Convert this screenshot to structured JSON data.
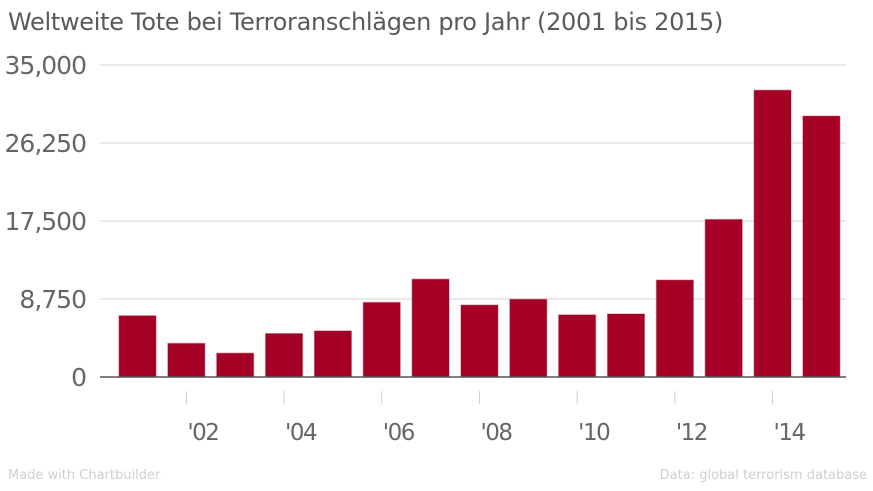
{
  "chart_data": {
    "type": "bar",
    "title": "Weltweite Tote bei Terroranschlägen pro Jahr (2001 bis 2015)",
    "xlabel": "",
    "ylabel": "",
    "ylim": [
      0,
      35000
    ],
    "yticks": [
      0,
      8750,
      17500,
      26250,
      35000
    ],
    "ytick_labels": [
      "0",
      "8,750",
      "17,500",
      "26,250",
      "35,000"
    ],
    "categories": [
      "2001",
      "2002",
      "2003",
      "2004",
      "2005",
      "2006",
      "2007",
      "2008",
      "2009",
      "2010",
      "2011",
      "2012",
      "2013",
      "2014",
      "2015"
    ],
    "values": [
      6900,
      3800,
      2700,
      4900,
      5200,
      8400,
      11000,
      8100,
      8750,
      7000,
      7100,
      10900,
      17700,
      32200,
      29300
    ],
    "xtick_labels": [
      {
        "category": "2002",
        "label": "'02"
      },
      {
        "category": "2004",
        "label": "'04"
      },
      {
        "category": "2006",
        "label": "'06"
      },
      {
        "category": "2008",
        "label": "'08"
      },
      {
        "category": "2010",
        "label": "'10"
      },
      {
        "category": "2012",
        "label": "'12"
      },
      {
        "category": "2014",
        "label": "'14"
      }
    ],
    "grid": true,
    "legend": "none",
    "colors": {
      "bar": "#a50026",
      "grid": "#e3e3e3",
      "axis": "#555555",
      "tick_text": "#666666"
    }
  },
  "footer": {
    "credit": "Made with Chartbuilder",
    "source": "Data: global terrorism database"
  }
}
